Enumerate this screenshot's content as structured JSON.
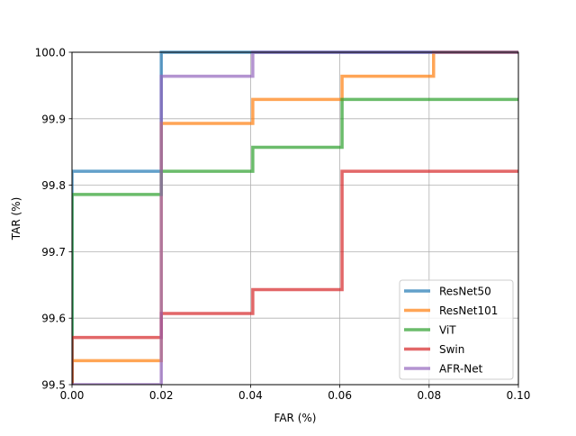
{
  "chart_data": {
    "type": "line",
    "title": "",
    "xlabel": "FAR (%)",
    "ylabel": "TAR (%)",
    "xlim": [
      0.0,
      0.1
    ],
    "ylim": [
      99.5,
      100.0
    ],
    "xticks": [
      0.0,
      0.02,
      0.04,
      0.06,
      0.08,
      0.1
    ],
    "xtick_labels": [
      "0.00",
      "0.02",
      "0.04",
      "0.06",
      "0.08",
      "0.10"
    ],
    "yticks": [
      99.5,
      99.6,
      99.7,
      99.8,
      99.9,
      100.0
    ],
    "ytick_labels": [
      "99.5",
      "99.6",
      "99.7",
      "99.8",
      "99.9",
      "100.0"
    ],
    "grid": true,
    "legend_position": "lower-right",
    "step": "post",
    "series": [
      {
        "name": "ResNet50",
        "color": "#1f77b4",
        "x": [
          0.0,
          0.0,
          0.02,
          0.02,
          0.1
        ],
        "y": [
          99.5,
          99.821,
          99.821,
          100.0,
          100.0
        ]
      },
      {
        "name": "ResNet101",
        "color": "#ff7f0e",
        "x": [
          0.0,
          0.0,
          0.02,
          0.02,
          0.0405,
          0.0405,
          0.0605,
          0.0605,
          0.081,
          0.081,
          0.1
        ],
        "y": [
          99.5,
          99.536,
          99.536,
          99.893,
          99.893,
          99.929,
          99.929,
          99.964,
          99.964,
          100.0,
          100.0
        ]
      },
      {
        "name": "ViT",
        "color": "#2ca02c",
        "x": [
          0.0,
          0.0,
          0.02,
          0.02,
          0.0405,
          0.0405,
          0.0605,
          0.0605,
          0.1
        ],
        "y": [
          99.5,
          99.786,
          99.786,
          99.821,
          99.821,
          99.857,
          99.857,
          99.929,
          99.929
        ]
      },
      {
        "name": "Swin",
        "color": "#d62728",
        "x": [
          0.0,
          0.0,
          0.02,
          0.02,
          0.0405,
          0.0405,
          0.0605,
          0.0605,
          0.1
        ],
        "y": [
          99.5,
          99.571,
          99.571,
          99.607,
          99.607,
          99.643,
          99.643,
          99.821,
          99.821
        ]
      },
      {
        "name": "AFR-Net",
        "color": "#9467bd",
        "x": [
          0.0,
          0.02,
          0.02,
          0.0405,
          0.0405,
          0.1
        ],
        "y": [
          99.5,
          99.5,
          99.964,
          99.964,
          100.0,
          100.0
        ]
      }
    ]
  }
}
